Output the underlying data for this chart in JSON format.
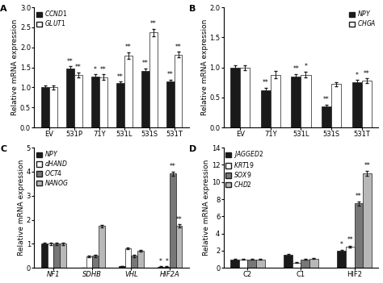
{
  "panel_A": {
    "categories": [
      "EV",
      "531P",
      "71Y",
      "531L",
      "531S",
      "531T"
    ],
    "CCND1": [
      1.0,
      1.47,
      1.28,
      1.1,
      1.42,
      1.15
    ],
    "GLUT1": [
      1.0,
      1.32,
      1.26,
      1.8,
      2.37,
      1.82
    ],
    "CCND1_err": [
      0.05,
      0.06,
      0.05,
      0.05,
      0.06,
      0.05
    ],
    "GLUT1_err": [
      0.05,
      0.06,
      0.07,
      0.08,
      0.09,
      0.07
    ],
    "CCND1_stars": [
      "",
      "**",
      "*",
      "**",
      "**",
      "**"
    ],
    "GLUT1_stars": [
      "",
      "**",
      "**",
      "**",
      "**",
      "**"
    ],
    "ylim": [
      0,
      3.0
    ],
    "yticks": [
      0,
      0.5,
      1.0,
      1.5,
      2.0,
      2.5,
      3.0
    ]
  },
  "panel_B": {
    "categories": [
      "EV",
      "71Y",
      "531L",
      "531S",
      "531T"
    ],
    "NPY": [
      1.0,
      0.62,
      0.85,
      0.35,
      0.75
    ],
    "CHGA": [
      1.0,
      0.88,
      0.88,
      0.72,
      0.78
    ],
    "NPY_err": [
      0.04,
      0.04,
      0.04,
      0.03,
      0.04
    ],
    "CHGA_err": [
      0.04,
      0.06,
      0.05,
      0.04,
      0.04
    ],
    "NPY_stars": [
      "",
      "**",
      "**",
      "**",
      "*"
    ],
    "CHGA_stars": [
      "",
      "",
      "*",
      "",
      "**"
    ],
    "ylim": [
      0,
      2.0
    ],
    "yticks": [
      0,
      0.5,
      1.0,
      1.5,
      2.0
    ]
  },
  "panel_C": {
    "categories": [
      "NF1",
      "SDHB",
      "VHL",
      "HIF2A"
    ],
    "NPY": [
      1.0,
      0.0,
      0.08,
      0.05
    ],
    "dHAND": [
      1.0,
      0.48,
      0.82,
      0.05
    ],
    "OCT4": [
      1.0,
      0.5,
      0.5,
      3.92
    ],
    "NANOG": [
      1.0,
      1.74,
      0.72,
      1.75
    ],
    "NPY_err": [
      0.05,
      0.01,
      0.01,
      0.01
    ],
    "dHAND_err": [
      0.05,
      0.03,
      0.04,
      0.01
    ],
    "OCT4_err": [
      0.05,
      0.04,
      0.04,
      0.08
    ],
    "NANOG_err": [
      0.05,
      0.06,
      0.04,
      0.07
    ],
    "NPY_stars": [
      "",
      "",
      "",
      "*"
    ],
    "dHAND_stars": [
      "",
      "",
      "",
      "*"
    ],
    "OCT4_stars": [
      "",
      "",
      "",
      "**"
    ],
    "NANOG_stars": [
      "",
      "",
      "",
      "**"
    ],
    "ylim": [
      0,
      5.0
    ],
    "yticks": [
      0,
      1,
      2,
      3,
      4,
      5
    ]
  },
  "panel_D": {
    "categories": [
      "C2",
      "C1",
      "HIF2"
    ],
    "JAGGED2": [
      1.0,
      1.5,
      2.0
    ],
    "KRT19": [
      1.0,
      0.6,
      2.5
    ],
    "SOX9": [
      1.0,
      1.0,
      7.5
    ],
    "CHD2": [
      1.0,
      1.1,
      11.0
    ],
    "JAGGED2_err": [
      0.08,
      0.08,
      0.1
    ],
    "KRT19_err": [
      0.06,
      0.05,
      0.1
    ],
    "SOX9_err": [
      0.06,
      0.06,
      0.25
    ],
    "CHD2_err": [
      0.06,
      0.07,
      0.25
    ],
    "JAGGED2_stars": [
      "",
      "",
      "*"
    ],
    "KRT19_stars": [
      "",
      "",
      "**"
    ],
    "SOX9_stars": [
      "",
      "",
      "**"
    ],
    "CHD2_stars": [
      "",
      "",
      "**"
    ],
    "ylim": [
      0,
      14
    ],
    "yticks": [
      0,
      2,
      4,
      6,
      8,
      10,
      12,
      14
    ]
  },
  "colors": {
    "black": "#1a1a1a",
    "white": "#ffffff",
    "dark_gray": "#777777",
    "light_gray": "#b8b8b8"
  },
  "label_fontsize": 6.5,
  "tick_fontsize": 6,
  "star_fontsize": 5.5,
  "ylabel": "Relative mRNA expression"
}
